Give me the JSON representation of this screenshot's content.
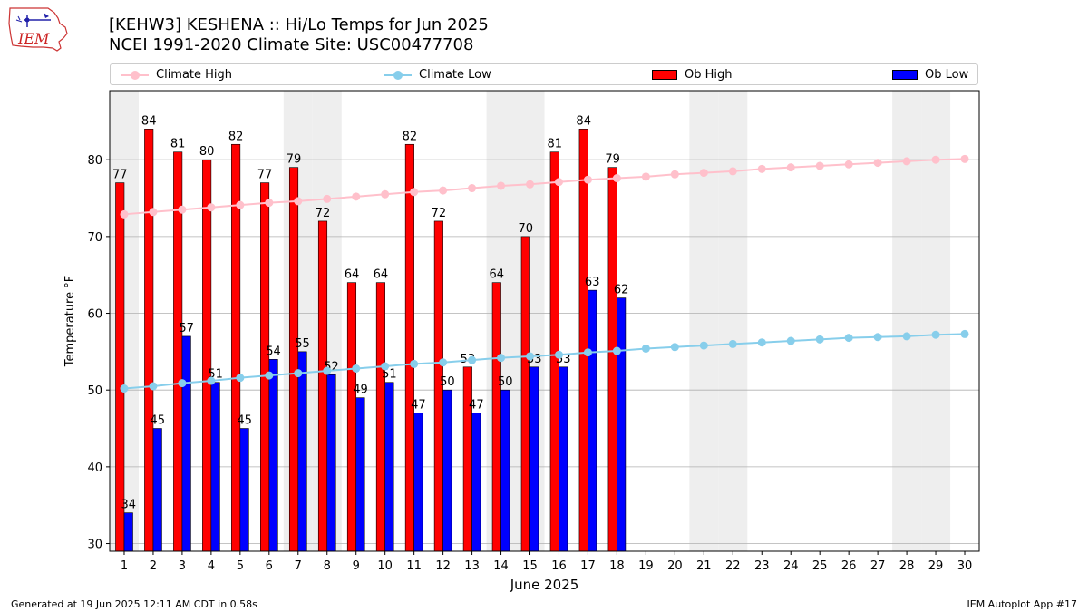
{
  "title": "[KEHW3] KESHENA :: Hi/Lo Temps for Jun 2025",
  "subtitle": "NCEI 1991-2020 Climate Site: USC00477708",
  "logo_text": "IEM",
  "footer_left": "Generated at 19 Jun 2025 12:11 AM CDT in 0.58s",
  "footer_right": "IEM Autoplot App #17",
  "legend": {
    "climate_high": "Climate High",
    "climate_low": "Climate Low",
    "ob_high": "Ob High",
    "ob_low": "Ob Low"
  },
  "colors": {
    "ob_high": "#ff0000",
    "ob_low": "#0000ff",
    "climate_high": "#ffc0cb",
    "climate_low": "#87ceeb",
    "weekend_shade": "#eeeeee",
    "grid": "#b0b0b0"
  },
  "chart_data": {
    "type": "bar",
    "xlabel": "June 2025",
    "ylabel": "Temperature °F",
    "ylim": [
      29,
      89
    ],
    "yticks": [
      30,
      40,
      50,
      60,
      70,
      80
    ],
    "grid": "horizontal",
    "legend_position": "top",
    "weekend_days": [
      1,
      7,
      8,
      14,
      15,
      21,
      22,
      28,
      29
    ],
    "days": [
      1,
      2,
      3,
      4,
      5,
      6,
      7,
      8,
      9,
      10,
      11,
      12,
      13,
      14,
      15,
      16,
      17,
      18,
      19,
      20,
      21,
      22,
      23,
      24,
      25,
      26,
      27,
      28,
      29,
      30
    ],
    "ob_high": [
      77,
      84,
      81,
      80,
      82,
      77,
      79,
      72,
      64,
      64,
      82,
      72,
      53,
      64,
      70,
      81,
      84,
      79
    ],
    "ob_low": [
      34,
      45,
      57,
      51,
      45,
      54,
      55,
      52,
      49,
      51,
      47,
      50,
      47,
      50,
      53,
      53,
      63,
      62
    ],
    "climate_high": [
      72.9,
      73.2,
      73.5,
      73.8,
      74.1,
      74.4,
      74.6,
      74.9,
      75.2,
      75.5,
      75.8,
      76.0,
      76.3,
      76.6,
      76.8,
      77.1,
      77.4,
      77.6,
      77.8,
      78.1,
      78.3,
      78.5,
      78.8,
      79.0,
      79.2,
      79.4,
      79.6,
      79.8,
      80.0,
      80.1
    ],
    "climate_low": [
      50.2,
      50.5,
      50.9,
      51.2,
      51.6,
      51.9,
      52.2,
      52.5,
      52.8,
      53.1,
      53.4,
      53.6,
      53.9,
      54.2,
      54.4,
      54.6,
      54.9,
      55.1,
      55.4,
      55.6,
      55.8,
      56.0,
      56.2,
      56.4,
      56.6,
      56.8,
      56.9,
      57.0,
      57.2,
      57.3
    ]
  }
}
